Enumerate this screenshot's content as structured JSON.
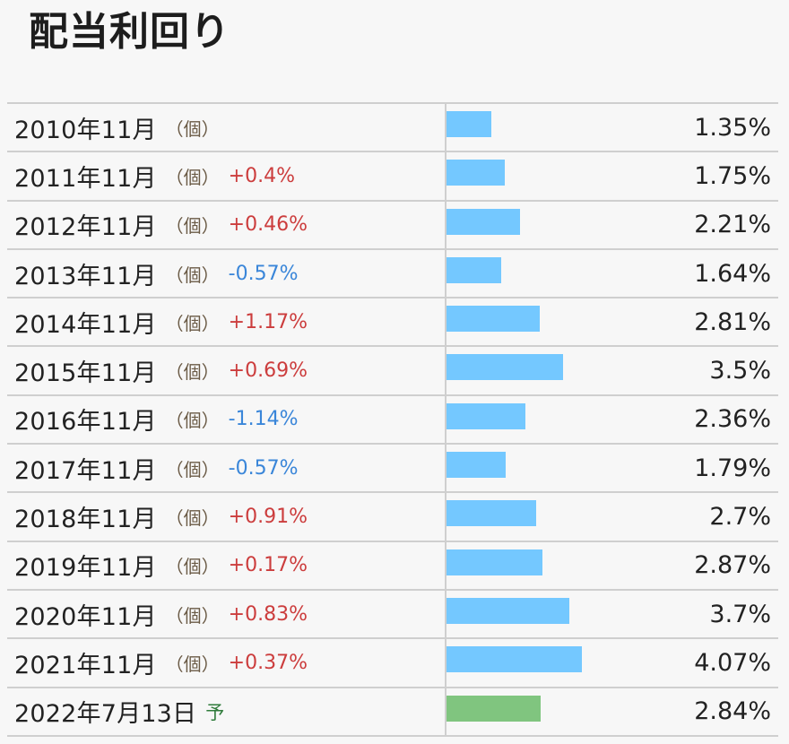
{
  "title": "配当利回り",
  "colors": {
    "bar": "#74c8ff",
    "forecast_bar": "#80c57f",
    "positive_change": "#cc3d3d",
    "negative_change": "#3a86d9",
    "forecast_tag": "#2f7b3b"
  },
  "chart_data": {
    "type": "bar",
    "title": "配当利回り",
    "unit": "%",
    "xlim": [
      0,
      9.7
    ],
    "rows": [
      {
        "date": "2010年11月",
        "tag": "（個）",
        "change": "",
        "change_sign": "",
        "value": 1.35,
        "value_label": "1.35%",
        "forecast": false
      },
      {
        "date": "2011年11月",
        "tag": "（個）",
        "change": "+0.4%",
        "change_sign": "pos",
        "value": 1.75,
        "value_label": "1.75%",
        "forecast": false
      },
      {
        "date": "2012年11月",
        "tag": "（個）",
        "change": "+0.46%",
        "change_sign": "pos",
        "value": 2.21,
        "value_label": "2.21%",
        "forecast": false
      },
      {
        "date": "2013年11月",
        "tag": "（個）",
        "change": "-0.57%",
        "change_sign": "neg",
        "value": 1.64,
        "value_label": "1.64%",
        "forecast": false
      },
      {
        "date": "2014年11月",
        "tag": "（個）",
        "change": "+1.17%",
        "change_sign": "pos",
        "value": 2.81,
        "value_label": "2.81%",
        "forecast": false
      },
      {
        "date": "2015年11月",
        "tag": "（個）",
        "change": "+0.69%",
        "change_sign": "pos",
        "value": 3.5,
        "value_label": "3.5%",
        "forecast": false
      },
      {
        "date": "2016年11月",
        "tag": "（個）",
        "change": "-1.14%",
        "change_sign": "neg",
        "value": 2.36,
        "value_label": "2.36%",
        "forecast": false
      },
      {
        "date": "2017年11月",
        "tag": "（個）",
        "change": "-0.57%",
        "change_sign": "neg",
        "value": 1.79,
        "value_label": "1.79%",
        "forecast": false
      },
      {
        "date": "2018年11月",
        "tag": "（個）",
        "change": "+0.91%",
        "change_sign": "pos",
        "value": 2.7,
        "value_label": "2.7%",
        "forecast": false
      },
      {
        "date": "2019年11月",
        "tag": "（個）",
        "change": "+0.17%",
        "change_sign": "pos",
        "value": 2.87,
        "value_label": "2.87%",
        "forecast": false
      },
      {
        "date": "2020年11月",
        "tag": "（個）",
        "change": "+0.83%",
        "change_sign": "pos",
        "value": 3.7,
        "value_label": "3.7%",
        "forecast": false
      },
      {
        "date": "2021年11月",
        "tag": "（個）",
        "change": "+0.37%",
        "change_sign": "pos",
        "value": 4.07,
        "value_label": "4.07%",
        "forecast": false
      },
      {
        "date": "2022年7月13日",
        "tag": "",
        "change": "予",
        "change_sign": "forecast",
        "value": 2.84,
        "value_label": "2.84%",
        "forecast": true
      }
    ]
  }
}
